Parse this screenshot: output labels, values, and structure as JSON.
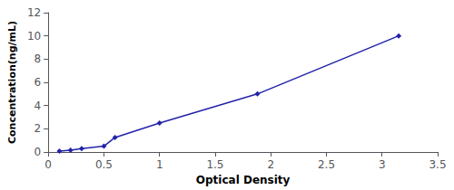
{
  "chart_data": {
    "type": "line",
    "x": [
      0.1,
      0.2,
      0.3,
      0.5,
      0.6,
      1.0,
      1.88,
      3.15
    ],
    "values": [
      0.078,
      0.156,
      0.3,
      0.5,
      1.25,
      2.5,
      5.0,
      10.0
    ],
    "color": "#2222aa",
    "marker": "diamond",
    "xlabel": "Optical Density",
    "ylabel": "Concentration(ng/mL)",
    "xlim": [
      0,
      3.5
    ],
    "ylim": [
      0,
      12
    ],
    "xticks": [
      0,
      0.5,
      1,
      1.5,
      2,
      2.5,
      3,
      3.5
    ],
    "yticks": [
      0,
      2,
      4,
      6,
      8,
      10,
      12
    ],
    "grid": false
  }
}
